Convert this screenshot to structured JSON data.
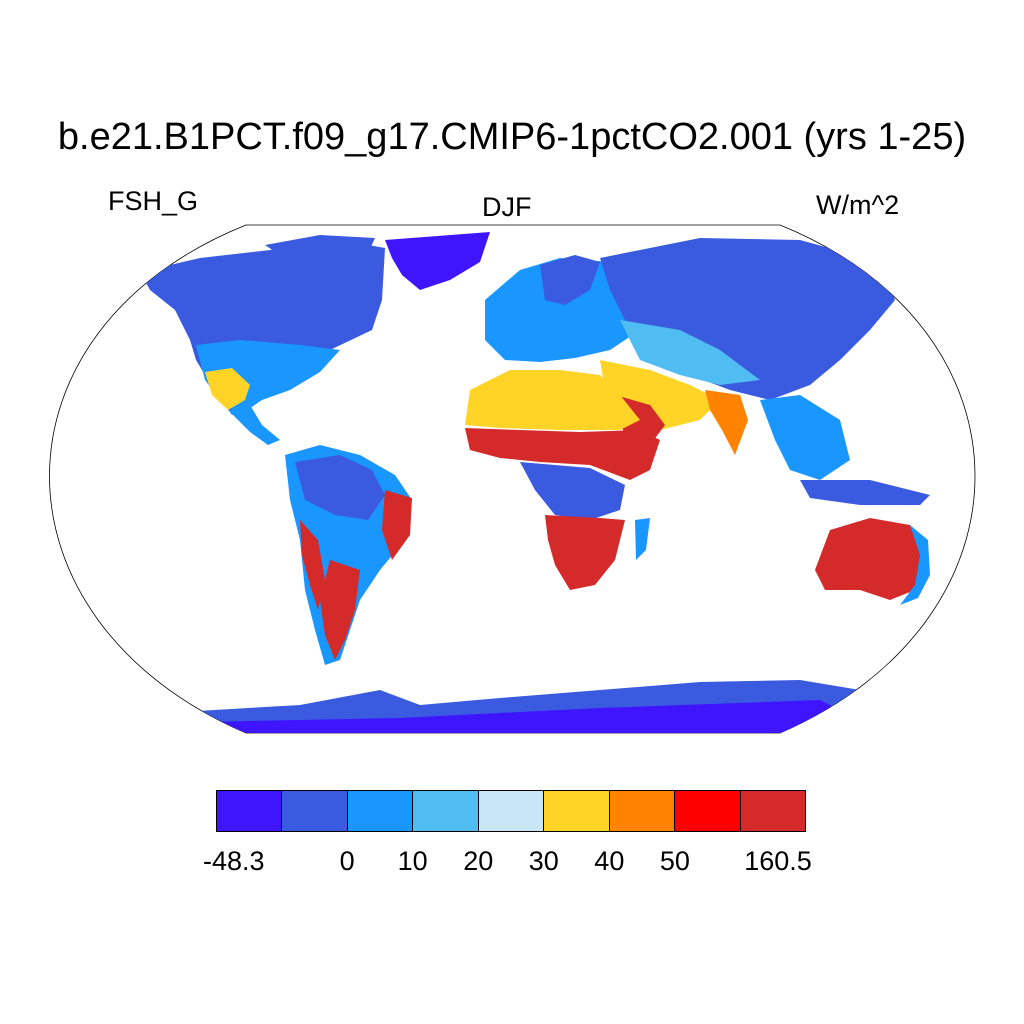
{
  "title": "b.e21.B1PCT.f09_g17.CMIP6-1pctCO2.001 (yrs 1-25)",
  "variable": "FSH_G",
  "season": "DJF",
  "units": "W/m^2",
  "colorbar": {
    "colors": [
      "#3f14ff",
      "#3a5be0",
      "#1a96ff",
      "#4fbdf2",
      "#c9e6f7",
      "#ffd426",
      "#ff8200",
      "#ff0000",
      "#d42a2a"
    ],
    "tick_labels": [
      "-48.3",
      "0",
      "10",
      "20",
      "30",
      "40",
      "50",
      "160.5"
    ]
  },
  "legend_colors": {
    "ocean": "#ffffff",
    "outline": "#000000"
  }
}
